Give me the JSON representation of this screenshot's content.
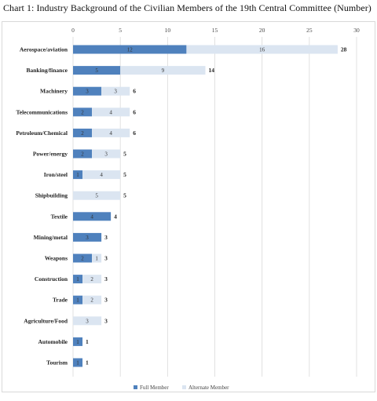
{
  "title": "Chart 1: Industry Background of the Civilian Members of the 19th Central Committee (Number)",
  "colors": {
    "full": "#4f81bd",
    "alternate": "#dbe5f1",
    "grid": "#d9d9d9"
  },
  "chart_data": {
    "type": "bar",
    "orientation": "horizontal",
    "stacked": true,
    "title": "Chart 1: Industry Background of the Civilian Members of the 19th Central Committee (Number)",
    "xlim": [
      0,
      30
    ],
    "xticks": [
      "0",
      "5",
      "10",
      "15",
      "20",
      "25",
      "30"
    ],
    "grid": true,
    "legend_position": "bottom",
    "categories": [
      "Aerospace/aviation",
      "Banking/finance",
      "Machinery",
      "Telecommunications",
      "Petroleum/Chemical",
      "Power/energy",
      "Iron/steel",
      "Shipbuilding",
      "Textile",
      "Mining/metal",
      "Weapons",
      "Construction",
      "Trade",
      "Agriculture/Food",
      "Automobile",
      "Tourism"
    ],
    "series": [
      {
        "name": "Full Member",
        "values": [
          12,
          5,
          3,
          2,
          2,
          2,
          1,
          0,
          4,
          3,
          2,
          1,
          1,
          0,
          1,
          1
        ]
      },
      {
        "name": "Alternate Member",
        "values": [
          16,
          9,
          3,
          4,
          4,
          3,
          4,
          5,
          0,
          0,
          1,
          2,
          2,
          3,
          0,
          0
        ]
      }
    ],
    "totals": [
      28,
      14,
      6,
      6,
      6,
      5,
      5,
      5,
      4,
      3,
      3,
      3,
      3,
      3,
      1,
      1
    ]
  }
}
